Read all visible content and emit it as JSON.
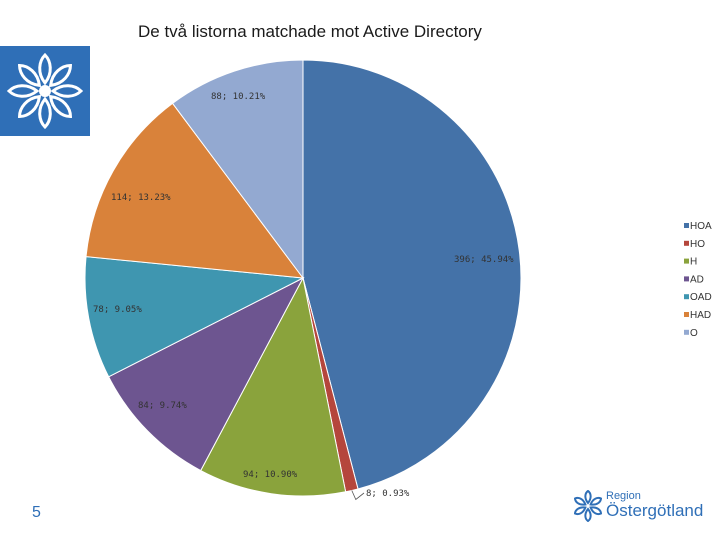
{
  "slide": {
    "page_number": "5",
    "brand_region": "Region",
    "brand_name": "Östergötland"
  },
  "colors": {
    "HOA": "#4472a8",
    "HO": "#b5463c",
    "H": "#8aa33c",
    "AD": "#6d5590",
    "OAD": "#3f96b0",
    "HAD": "#d9823a",
    "O": "#93a9d1",
    "logo": "#2f6fb7"
  },
  "chart_data": {
    "type": "pie",
    "title": "De två listorna matchade mot Active Directory",
    "slices": [
      {
        "name": "HOA",
        "value": 396,
        "percent": "45.94%",
        "label": "396; 45.94%"
      },
      {
        "name": "HO",
        "value": 8,
        "percent": "0.93%",
        "label": "8; 0.93%"
      },
      {
        "name": "H",
        "value": 94,
        "percent": "10.90%",
        "label": "94; 10.90%"
      },
      {
        "name": "AD",
        "value": 84,
        "percent": "9.74%",
        "label": "84; 9.74%"
      },
      {
        "name": "OAD",
        "value": 78,
        "percent": "9.05%",
        "label": "78; 9.05%"
      },
      {
        "name": "HAD",
        "value": 114,
        "percent": "13.23%",
        "label": "114; 13.23%"
      },
      {
        "name": "O",
        "value": 88,
        "percent": "10.21%",
        "label": "88; 10.21%"
      }
    ],
    "legend_placement": "right"
  }
}
